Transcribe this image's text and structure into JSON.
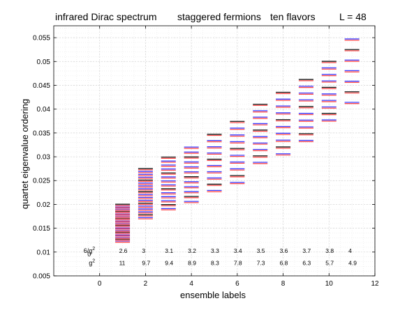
{
  "chart_data": {
    "type": "scatter",
    "marker": "horizontal-dash",
    "title_parts": [
      "infrared Dirac spectrum",
      "staggered fermions",
      "ten flavors",
      "L = 48"
    ],
    "xlabel": "ensemble labels",
    "ylabel": "quartet eigenvalue ordering",
    "xlim": [
      -2,
      12
    ],
    "ylim": [
      0.005,
      0.0575
    ],
    "xticks": [
      0,
      2,
      4,
      6,
      8,
      10,
      12
    ],
    "yticks": [
      0.005,
      0.01,
      0.015,
      0.02,
      0.025,
      0.03,
      0.035,
      0.04,
      0.045,
      0.05,
      0.055
    ],
    "ytick_labels": [
      "0.005",
      "0.01",
      "0.015",
      "0.02",
      "0.025",
      "0.03",
      "0.035",
      "0.04",
      "0.045",
      "0.05",
      "0.055"
    ],
    "grid": true,
    "grid_minor": true,
    "colors": {
      "red": "#ff4a4a",
      "blue": "#3a3aff",
      "black": "#111111",
      "light_blue": "#9a9aff"
    },
    "ensembles": [
      {
        "x": 1,
        "top": 0.0199,
        "bottom": 0.0122,
        "n": 22
      },
      {
        "x": 2,
        "top": 0.0274,
        "bottom": 0.0171,
        "n": 18
      },
      {
        "x": 3,
        "top": 0.0298,
        "bottom": 0.019,
        "n": 14
      },
      {
        "x": 4,
        "top": 0.0319,
        "bottom": 0.0205,
        "n": 12
      },
      {
        "x": 5,
        "top": 0.0346,
        "bottom": 0.0228,
        "n": 10
      },
      {
        "x": 6,
        "top": 0.0373,
        "bottom": 0.0245,
        "n": 10
      },
      {
        "x": 7,
        "top": 0.0409,
        "bottom": 0.0287,
        "n": 10
      },
      {
        "x": 8,
        "top": 0.0434,
        "bottom": 0.0305,
        "n": 10
      },
      {
        "x": 9,
        "top": 0.0461,
        "bottom": 0.0333,
        "n": 10
      },
      {
        "x": 10,
        "top": 0.0499,
        "bottom": 0.0376,
        "n": 10
      },
      {
        "x": 11,
        "top": 0.0546,
        "bottom": 0.0413,
        "n": 7
      }
    ],
    "annotations": {
      "row1_label_main": "6/g",
      "row1_label_sup": "2",
      "row1_label_sub": "0",
      "row1_y": 0.0103,
      "row1_values": [
        "2.6",
        "3",
        "3.1",
        "3.2",
        "3.3",
        "3.4",
        "3.5",
        "3.6",
        "3.7",
        "3.8",
        "4"
      ],
      "row2_label_main": "g",
      "row2_label_sup": "2",
      "row2_y": 0.0077,
      "row2_values": [
        "11",
        "9.7",
        "9.4",
        "8.9",
        "8.3",
        "7.8",
        "7.3",
        "6.8",
        "6.3",
        "5.7",
        "4.9"
      ]
    }
  }
}
